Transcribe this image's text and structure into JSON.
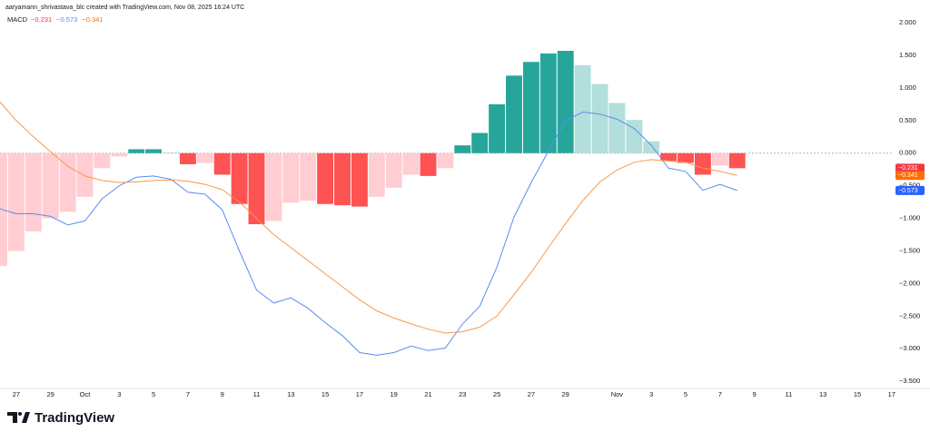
{
  "header": "aaryamann_shrivastava_blc created with TradingView.com, Nov 08, 2025 16:24 UTC",
  "footer": {
    "brand": "TradingView"
  },
  "chart_data": {
    "type": "macd",
    "indicator": "MACD",
    "categories": [
      null,
      "27",
      null,
      "29",
      null,
      "Oct",
      null,
      "3",
      null,
      "5",
      null,
      "7",
      null,
      "9",
      null,
      "11",
      null,
      "13",
      null,
      "15",
      null,
      "17",
      null,
      "19",
      null,
      "21",
      null,
      "23",
      null,
      "25",
      null,
      "27",
      null,
      "29",
      null,
      null,
      "Nov",
      null,
      "3",
      null,
      "5",
      null,
      "7",
      null,
      "9",
      null,
      "11",
      null,
      "13",
      null,
      "15",
      null,
      "17"
    ],
    "histogram": {
      "values": [
        -1.73,
        -1.5,
        -1.2,
        -1.0,
        -0.9,
        -0.67,
        -0.23,
        -0.05,
        0.06,
        0.06,
        0.01,
        -0.17,
        -0.15,
        -0.33,
        -0.78,
        -1.09,
        -1.04,
        -0.76,
        -0.73,
        -0.78,
        -0.8,
        -0.82,
        -0.67,
        -0.53,
        -0.33,
        -0.35,
        -0.23,
        0.12,
        0.31,
        0.75,
        1.19,
        1.4,
        1.53,
        1.57,
        1.35,
        1.06,
        0.77,
        0.51,
        0.18,
        -0.12,
        -0.15,
        -0.33,
        -0.19,
        -0.231,
        null,
        null,
        null,
        null,
        null,
        null,
        null,
        null,
        null
      ],
      "colors": [
        "#ffcdd2",
        "#ffcdd2",
        "#ffcdd2",
        "#ffcdd2",
        "#ffcdd2",
        "#ffcdd2",
        "#ffcdd2",
        "#ffcdd2",
        "#26a69a",
        "#26a69a",
        "#b2dfdb",
        "#ff5252",
        "#ffcdd2",
        "#ff5252",
        "#ff5252",
        "#ff5252",
        "#ffcdd2",
        "#ffcdd2",
        "#ffcdd2",
        "#ff5252",
        "#ff5252",
        "#ff5252",
        "#ffcdd2",
        "#ffcdd2",
        "#ffcdd2",
        "#ff5252",
        "#ffcdd2",
        "#26a69a",
        "#26a69a",
        "#26a69a",
        "#26a69a",
        "#26a69a",
        "#26a69a",
        "#26a69a",
        "#b2dfdb",
        "#b2dfdb",
        "#b2dfdb",
        "#b2dfdb",
        "#b2dfdb",
        "#ff5252",
        "#ff5252",
        "#ff5252",
        "#ffcdd2",
        "#ff5252",
        null,
        null,
        null,
        null,
        null,
        null,
        null,
        null,
        null
      ],
      "last_label": "−0.231",
      "tag_color": "#f23645"
    },
    "series": [
      {
        "color": "#5b8def",
        "last_label": "−0.573",
        "values": [
          -0.85,
          -0.93,
          -0.93,
          -0.97,
          -1.1,
          -1.04,
          -0.7,
          -0.5,
          -0.37,
          -0.35,
          -0.4,
          -0.6,
          -0.63,
          -0.87,
          -1.5,
          -2.1,
          -2.3,
          -2.22,
          -2.38,
          -2.6,
          -2.8,
          -3.06,
          -3.1,
          -3.06,
          -2.96,
          -3.03,
          -2.99,
          -2.62,
          -2.35,
          -1.75,
          -0.98,
          -0.45,
          0.03,
          0.5,
          0.63,
          0.6,
          0.52,
          0.38,
          0.12,
          -0.23,
          -0.28,
          -0.57,
          -0.48,
          -0.573,
          null,
          null,
          null,
          null,
          null,
          null,
          null,
          null,
          null
        ],
        "tag_color": "#2962ff"
      },
      {
        "color": "#f79a4a",
        "last_label": "−0.341",
        "values": [
          0.8,
          0.5,
          0.25,
          0.02,
          -0.2,
          -0.35,
          -0.42,
          -0.45,
          -0.44,
          -0.42,
          -0.41,
          -0.43,
          -0.48,
          -0.56,
          -0.75,
          -1.0,
          -1.25,
          -1.45,
          -1.65,
          -1.85,
          -2.05,
          -2.25,
          -2.42,
          -2.53,
          -2.62,
          -2.7,
          -2.76,
          -2.74,
          -2.67,
          -2.5,
          -2.17,
          -1.83,
          -1.45,
          -1.08,
          -0.73,
          -0.44,
          -0.26,
          -0.14,
          -0.1,
          -0.12,
          -0.14,
          -0.23,
          -0.28,
          -0.341,
          null,
          null,
          null,
          null,
          null,
          null,
          null,
          null,
          null
        ],
        "tag_color": "#ff6d00"
      }
    ],
    "ylim": [
      -3.61,
      2.35
    ],
    "yticks": [
      {
        "value": 2,
        "label": "2.000"
      },
      {
        "value": 1.5,
        "label": "1.500"
      },
      {
        "value": 1,
        "label": "1.000"
      },
      {
        "value": 0.5,
        "label": "0.500"
      },
      {
        "value": 0,
        "label": "0.000"
      },
      {
        "value": -0.5,
        "label": "−0.500"
      },
      {
        "value": -1,
        "label": "−1.000"
      },
      {
        "value": -1.5,
        "label": "−1.500"
      },
      {
        "value": -2,
        "label": "−2.000"
      },
      {
        "value": -2.5,
        "label": "−2.500"
      },
      {
        "value": -3,
        "label": "−3.000"
      },
      {
        "value": -3.5,
        "label": "−3.500"
      }
    ],
    "zero_line": true
  }
}
